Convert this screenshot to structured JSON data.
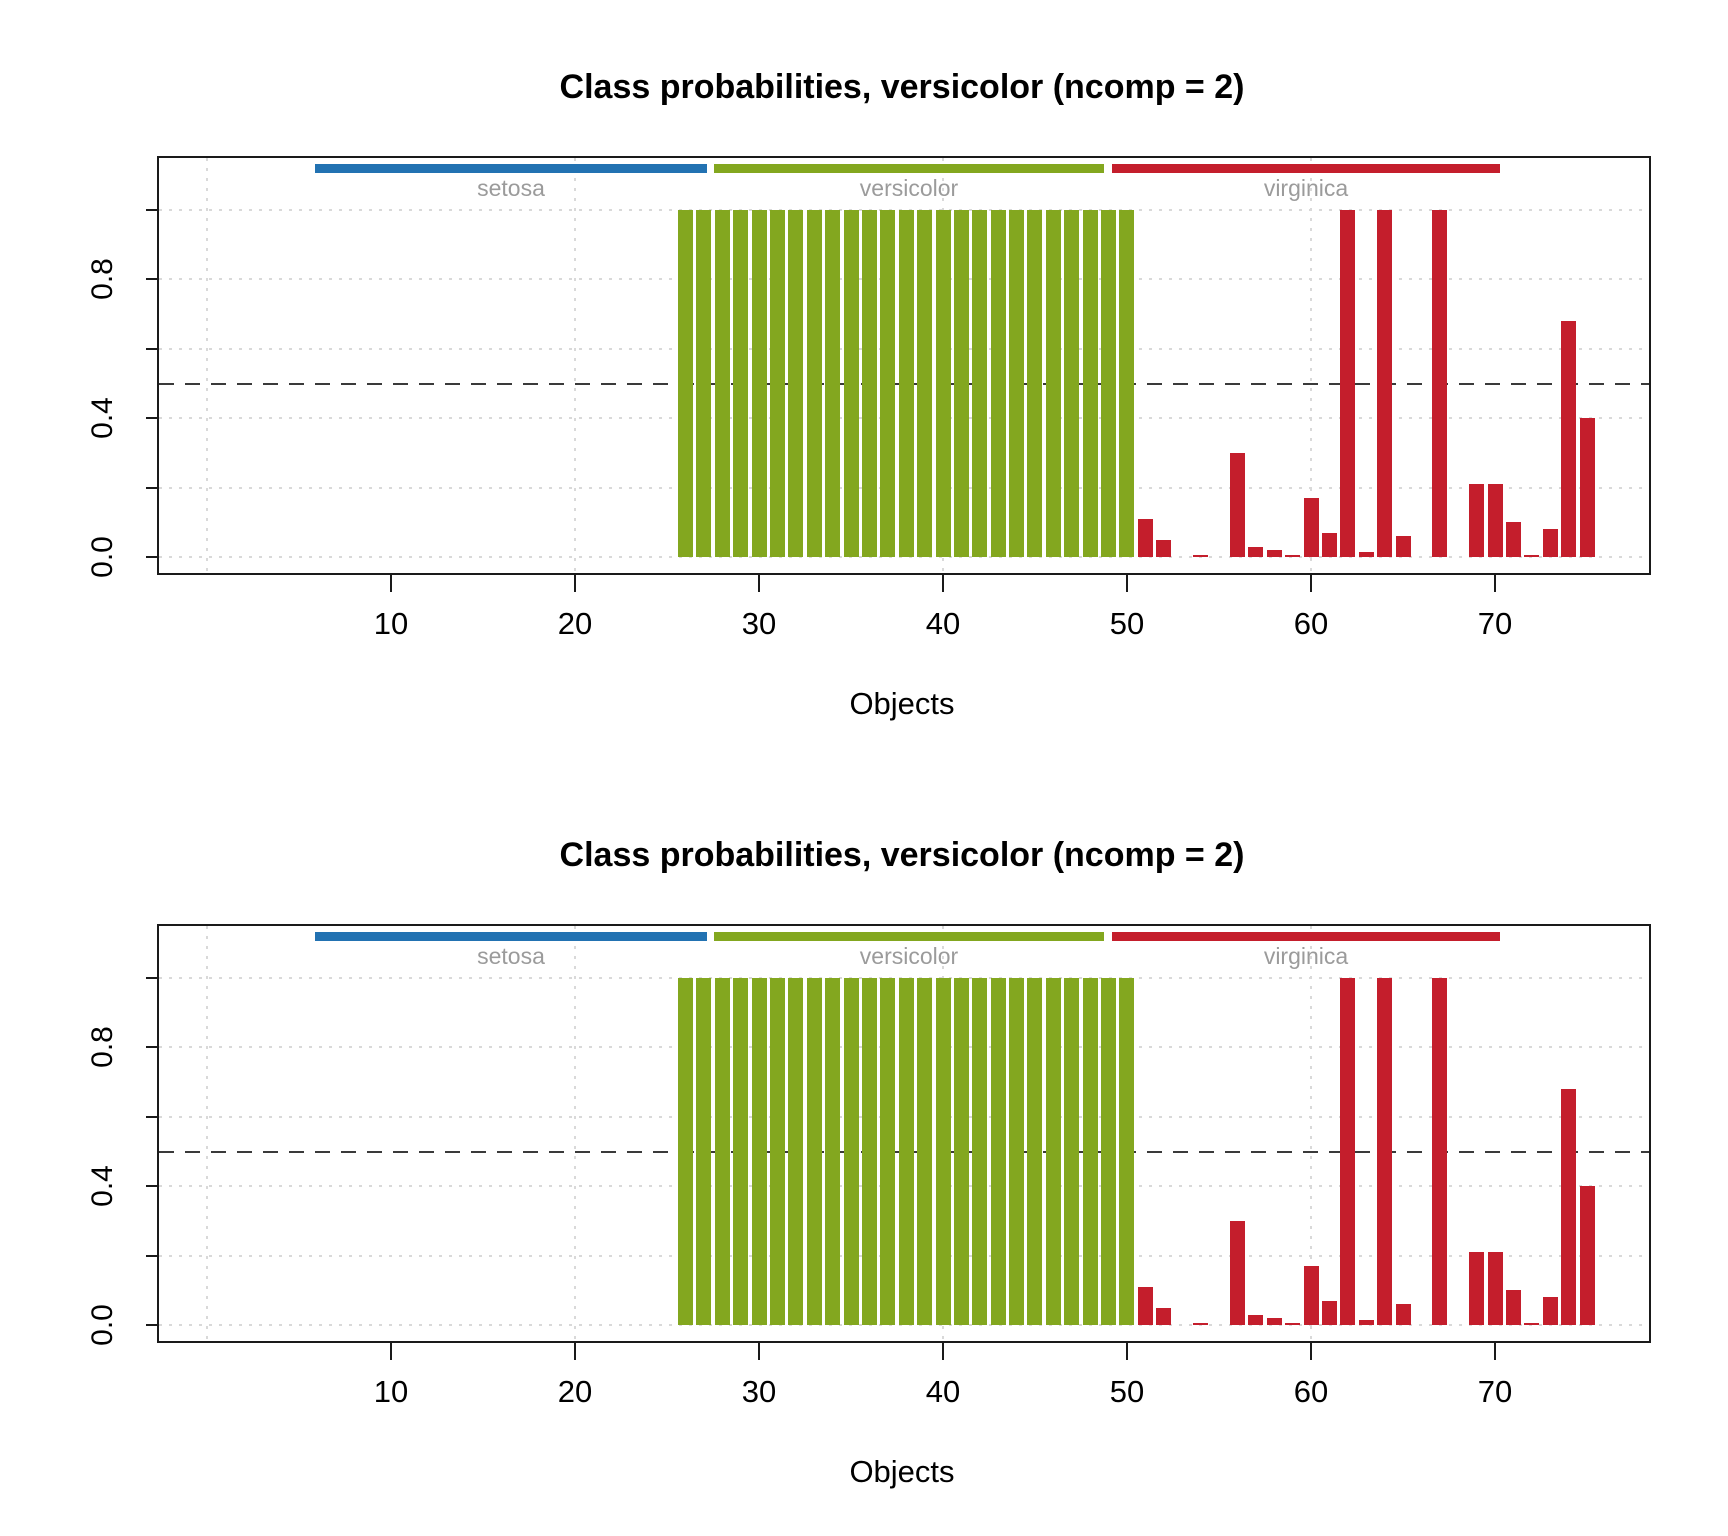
{
  "page": {
    "background": "#ffffff"
  },
  "chart_data": [
    {
      "type": "bar",
      "title": "Class probabilities, versicolor (ncomp = 2)",
      "xlabel": "Objects",
      "ylabel": "",
      "x_ticks": [
        "10",
        "20",
        "30",
        "40",
        "50",
        "60",
        "70"
      ],
      "y_ticks": [
        0.0,
        0.2,
        0.4,
        0.6,
        0.8,
        1.0
      ],
      "y_tick_labels": [
        {
          "value": 0.0,
          "label": "0.0"
        },
        {
          "value": 0.4,
          "label": "0.4"
        },
        {
          "value": 0.8,
          "label": "0.8"
        }
      ],
      "xlim": [
        -2.6,
        78.4
      ],
      "ylim": [
        -0.046,
        1.15
      ],
      "grid": true,
      "threshold_line": 0.5,
      "legend_position": "top-strips",
      "classes": [
        {
          "name": "setosa",
          "color": "#2272b2",
          "range": [
            1,
            25
          ]
        },
        {
          "name": "versicolor",
          "color": "#83a71f",
          "range": [
            26,
            50
          ]
        },
        {
          "name": "virginica",
          "color": "#c41e2c",
          "range": [
            51,
            75
          ]
        }
      ],
      "x": [
        1,
        2,
        3,
        4,
        5,
        6,
        7,
        8,
        9,
        10,
        11,
        12,
        13,
        14,
        15,
        16,
        17,
        18,
        19,
        20,
        21,
        22,
        23,
        24,
        25,
        26,
        27,
        28,
        29,
        30,
        31,
        32,
        33,
        34,
        35,
        36,
        37,
        38,
        39,
        40,
        41,
        42,
        43,
        44,
        45,
        46,
        47,
        48,
        49,
        50,
        51,
        52,
        53,
        54,
        55,
        56,
        57,
        58,
        59,
        60,
        61,
        62,
        63,
        64,
        65,
        66,
        67,
        68,
        69,
        70,
        71,
        72,
        73,
        74,
        75
      ],
      "values": [
        0,
        0,
        0,
        0,
        0,
        0,
        0,
        0,
        0,
        0,
        0,
        0,
        0,
        0,
        0,
        0,
        0,
        0,
        0,
        0,
        0,
        0,
        0,
        0,
        0,
        1,
        1,
        1,
        1,
        1,
        1,
        1,
        1,
        1,
        1,
        1,
        1,
        1,
        1,
        1,
        1,
        1,
        1,
        1,
        1,
        1,
        1,
        1,
        1,
        1,
        0.11,
        0.05,
        0,
        0.005,
        0,
        0.3,
        0.03,
        0.02,
        0.005,
        0.17,
        0.07,
        1.0,
        0.015,
        1.0,
        0.06,
        0,
        1.0,
        0,
        0.21,
        0.21,
        0.1,
        0.005,
        0.08,
        0.68,
        0.4
      ]
    },
    {
      "type": "bar",
      "title": "Class probabilities, versicolor (ncomp = 2)",
      "xlabel": "Objects",
      "ylabel": "",
      "x_ticks": [
        "10",
        "20",
        "30",
        "40",
        "50",
        "60",
        "70"
      ],
      "y_ticks": [
        0.0,
        0.2,
        0.4,
        0.6,
        0.8,
        1.0
      ],
      "y_tick_labels": [
        {
          "value": 0.0,
          "label": "0.0"
        },
        {
          "value": 0.4,
          "label": "0.4"
        },
        {
          "value": 0.8,
          "label": "0.8"
        }
      ],
      "xlim": [
        -2.6,
        78.4
      ],
      "ylim": [
        -0.046,
        1.15
      ],
      "grid": true,
      "threshold_line": 0.5,
      "legend_position": "top-strips",
      "classes": [
        {
          "name": "setosa",
          "color": "#2272b2",
          "range": [
            1,
            25
          ]
        },
        {
          "name": "versicolor",
          "color": "#83a71f",
          "range": [
            26,
            50
          ]
        },
        {
          "name": "virginica",
          "color": "#c41e2c",
          "range": [
            51,
            75
          ]
        }
      ],
      "x": [
        1,
        2,
        3,
        4,
        5,
        6,
        7,
        8,
        9,
        10,
        11,
        12,
        13,
        14,
        15,
        16,
        17,
        18,
        19,
        20,
        21,
        22,
        23,
        24,
        25,
        26,
        27,
        28,
        29,
        30,
        31,
        32,
        33,
        34,
        35,
        36,
        37,
        38,
        39,
        40,
        41,
        42,
        43,
        44,
        45,
        46,
        47,
        48,
        49,
        50,
        51,
        52,
        53,
        54,
        55,
        56,
        57,
        58,
        59,
        60,
        61,
        62,
        63,
        64,
        65,
        66,
        67,
        68,
        69,
        70,
        71,
        72,
        73,
        74,
        75
      ],
      "values": [
        0,
        0,
        0,
        0,
        0,
        0,
        0,
        0,
        0,
        0,
        0,
        0,
        0,
        0,
        0,
        0,
        0,
        0,
        0,
        0,
        0,
        0,
        0,
        0,
        0,
        1,
        1,
        1,
        1,
        1,
        1,
        1,
        1,
        1,
        1,
        1,
        1,
        1,
        1,
        1,
        1,
        1,
        1,
        1,
        1,
        1,
        1,
        1,
        1,
        1,
        0.11,
        0.05,
        0,
        0.005,
        0,
        0.3,
        0.03,
        0.02,
        0.005,
        0.17,
        0.07,
        1.0,
        0.015,
        1.0,
        0.06,
        0,
        1.0,
        0,
        0.21,
        0.21,
        0.1,
        0.005,
        0.08,
        0.68,
        0.4
      ]
    }
  ],
  "style": {
    "grid_color": "#d9d9d9",
    "threshold_color": "#3a3a3a",
    "box_color": "#1a1a1a",
    "class_label_color": "#9b9b9b",
    "title_color": "#000000"
  }
}
